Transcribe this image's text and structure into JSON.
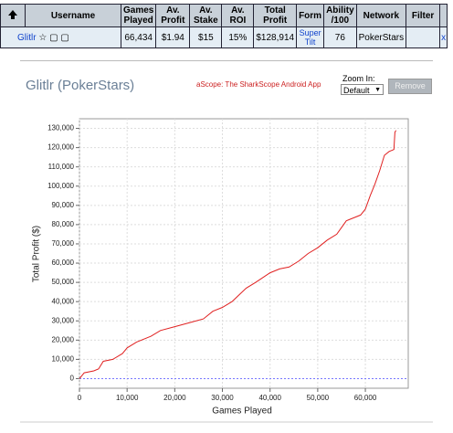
{
  "table": {
    "headers": [
      "Username",
      "Games Played",
      "Av. Profit",
      "Av. Stake",
      "Av. ROI",
      "Total Profit",
      "Form",
      "Ability /100",
      "Network",
      "Filter"
    ],
    "rows": [
      [
        "Glitlr",
        "66,434",
        "$1.94",
        "$15",
        "15%",
        "$128,914",
        "Super Tilt",
        "76",
        "PokerStars",
        "",
        "x"
      ]
    ]
  },
  "player_title": "Glitlr (PokerStars)",
  "app_link": "aScope: The SharkScope Android App",
  "zoom_label": "Zoom In:",
  "zoom_value": "Default",
  "remove_button": "Remove",
  "chart_data": {
    "type": "line",
    "xlabel": "Games Played",
    "ylabel": "Total Profit ($)",
    "x": [
      0,
      1000,
      3000,
      4000,
      5000,
      7000,
      9000,
      10000,
      12000,
      15000,
      17000,
      20000,
      23000,
      26000,
      28000,
      30000,
      32000,
      35000,
      37000,
      40000,
      42000,
      44000,
      46000,
      48000,
      50000,
      52000,
      54000,
      56000,
      58000,
      59000,
      60000,
      61000,
      62000,
      63000,
      64000,
      65000,
      66000,
      66200,
      66434
    ],
    "values": [
      0,
      3000,
      4000,
      5000,
      9000,
      10000,
      13000,
      16000,
      19000,
      22000,
      25000,
      27000,
      29000,
      31000,
      35000,
      37000,
      40000,
      47000,
      50000,
      55000,
      57000,
      58000,
      61000,
      65000,
      68000,
      72000,
      75000,
      82000,
      84000,
      85000,
      88000,
      95000,
      101000,
      108000,
      116000,
      118000,
      119000,
      128000,
      128914
    ],
    "color": "#e02020",
    "xlim": [
      0,
      69000
    ],
    "ylim": [
      -5000,
      135000
    ],
    "xticks": [
      0,
      {
        "value": 10000,
        "label": "10,000"
      },
      {
        "value": 20000,
        "label": "20,000"
      },
      {
        "value": 30000,
        "label": "30,000"
      },
      {
        "value": 40000,
        "label": "40,000"
      },
      {
        "value": 50000,
        "label": "50,000"
      },
      {
        "value": 60000,
        "label": "60,000"
      }
    ],
    "yticks": [
      0,
      {
        "value": 10000,
        "label": "10,000"
      },
      {
        "value": 20000,
        "label": "20,000"
      },
      {
        "value": 30000,
        "label": "30,000"
      },
      {
        "value": 40000,
        "label": "40,000"
      },
      {
        "value": 50000,
        "label": "50,000"
      },
      {
        "value": 60000,
        "label": "60,000"
      },
      {
        "value": 70000,
        "label": "70,000"
      },
      {
        "value": 80000,
        "label": "80,000"
      },
      {
        "value": 90000,
        "label": "90,000"
      },
      {
        "value": 100000,
        "label": "100,000"
      },
      {
        "value": 110000,
        "label": "110,000"
      },
      {
        "value": 120000,
        "label": "120,000"
      },
      {
        "value": 130000,
        "label": "130,000"
      }
    ],
    "grid": true
  }
}
